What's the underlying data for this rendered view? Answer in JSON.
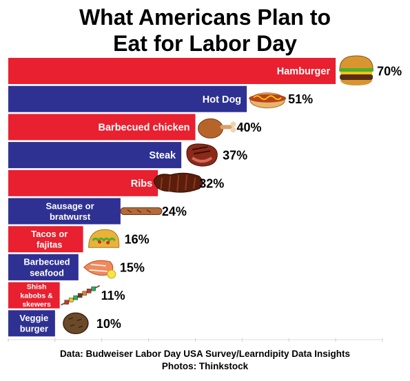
{
  "chart_data": {
    "type": "bar",
    "orientation": "horizontal",
    "title": "What Americans Plan to\nEat for Labor Day",
    "categories": [
      "Hamburger",
      "Hot Dog",
      "Barbecued chicken",
      "Steak",
      "Ribs",
      "Sausage or bratwurst",
      "Tacos or fajitas",
      "Barbecued seafood",
      "Shish kabobs & skewers",
      "Veggie burger"
    ],
    "category_lines": [
      [
        "Hamburger"
      ],
      [
        "Hot Dog"
      ],
      [
        "Barbecued chicken"
      ],
      [
        "Steak"
      ],
      [
        "Ribs"
      ],
      [
        "Sausage or",
        "bratwurst"
      ],
      [
        "Tacos or",
        "fajitas"
      ],
      [
        "Barbecued",
        "seafood"
      ],
      [
        "Shish",
        "kabobs &",
        "skewers"
      ],
      [
        "Veggie",
        "burger"
      ]
    ],
    "values": [
      70,
      51,
      40,
      37,
      32,
      24,
      16,
      15,
      11,
      10
    ],
    "value_labels": [
      "70%",
      "51%",
      "40%",
      "37%",
      "32%",
      "24%",
      "16%",
      "15%",
      "11%",
      "10%"
    ],
    "icons": [
      "hamburger-icon",
      "hot-dog-icon",
      "chicken-leg-icon",
      "steak-icon",
      "ribs-icon",
      "sausage-icon",
      "taco-icon",
      "seafood-icon",
      "kabob-icon",
      "veggie-burger-icon"
    ],
    "xlim": [
      0,
      80
    ],
    "grid": false,
    "legend": "none",
    "colors": {
      "alternate": [
        "#e8202f",
        "#2e3192"
      ],
      "label_text": "#ffffff",
      "value_text": "#000000"
    }
  },
  "footer": {
    "source": "Data: Budweiser Labor Day USA Survey/Learndipity Data Insights",
    "photos": "Photos: Thinkstock"
  }
}
